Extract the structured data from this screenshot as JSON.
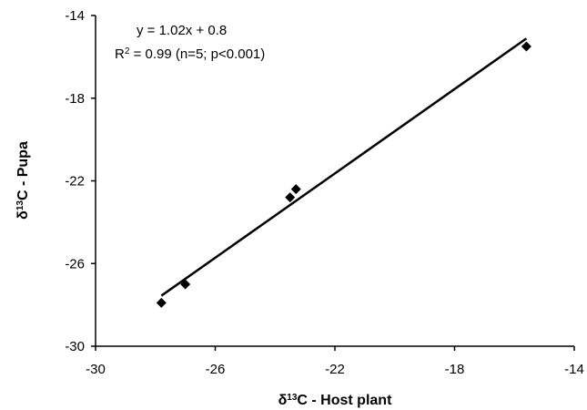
{
  "chart_data": {
    "type": "scatter",
    "xlim": [
      -30,
      -14
    ],
    "ylim": [
      -30,
      -14
    ],
    "x_ticks": [
      -30,
      -26,
      -22,
      -18,
      -14
    ],
    "y_ticks": [
      -30,
      -26,
      -22,
      -18,
      -14
    ],
    "xlabel": {
      "symbol": "δ",
      "sup": "13",
      "text": "C - Host plant"
    },
    "ylabel": {
      "symbol": "δ",
      "sup": "13",
      "text": "C - Pupa"
    },
    "grid": false,
    "series": [
      {
        "marker": "diamond",
        "color": "#000000",
        "points": [
          {
            "x": -27.8,
            "y": -27.9
          },
          {
            "x": -27.0,
            "y": -27.0
          },
          {
            "x": -23.5,
            "y": -22.8
          },
          {
            "x": -23.3,
            "y": -22.4
          },
          {
            "x": -15.6,
            "y": -15.5
          }
        ]
      }
    ],
    "trendline": {
      "slope": 1.02,
      "intercept": 0.8,
      "x_range": [
        -27.8,
        -15.6
      ],
      "color": "#000000"
    },
    "annotations": {
      "equation": "y = 1.02x + 0.8",
      "r2_prefix": "R",
      "r2_sup": "2",
      "r2_suffix": " = 0.99 (n=5; p<0.001)"
    }
  }
}
